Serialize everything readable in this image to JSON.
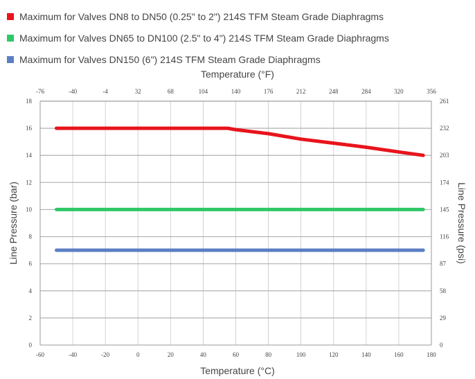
{
  "chart_data": {
    "type": "line",
    "legend": {
      "placement": "top-left",
      "entries": [
        {
          "label": "Maximum for Valves DN8 to DN50 (0.25\" to 2\") 214S TFM Steam Grade Diaphragms",
          "color": "#e8141c"
        },
        {
          "label": "Maximum for Valves DN65 to DN100 (2.5\" to 4\") 214S TFM Steam Grade Diaphragms",
          "color": "#2ec866"
        },
        {
          "label": "Maximum for Valves DN150 (6\") 214S TFM Steam Grade Diaphragms",
          "color": "#5b7fc4"
        }
      ]
    },
    "x_bottom": {
      "label": "Temperature (°C)",
      "range": [
        -60,
        180
      ],
      "ticks": [
        -60,
        -40,
        -20,
        0,
        20,
        40,
        60,
        80,
        100,
        120,
        140,
        160,
        180
      ]
    },
    "x_top": {
      "label": "Temperature (°F)",
      "ticks": [
        "-76",
        "-40",
        "-4",
        "32",
        "68",
        "104",
        "140",
        "176",
        "212",
        "248",
        "284",
        "320",
        "356"
      ]
    },
    "y_left": {
      "label": "Line Pressure (bar)",
      "range": [
        0,
        18
      ],
      "ticks": [
        0,
        2,
        4,
        6,
        8,
        10,
        12,
        14,
        16,
        18
      ]
    },
    "y_right": {
      "label": "Line Pressure (psi)",
      "ticks": [
        "0",
        "29",
        "58",
        "87",
        "116",
        "145",
        "174",
        "203",
        "232",
        "261"
      ]
    },
    "grid": {
      "horizontal": true,
      "vertical": true
    },
    "series": [
      {
        "name": "Maximum for Valves DN8 to DN50 (0.25\" to 2\") 214S TFM Steam Grade Diaphragms",
        "color": "#e8141c",
        "x": [
          -50,
          55,
          60,
          80,
          100,
          120,
          140,
          160,
          175
        ],
        "y": [
          16,
          16,
          15.9,
          15.6,
          15.2,
          14.9,
          14.6,
          14.25,
          14
        ]
      },
      {
        "name": "Maximum for Valves DN65 to DN100 (2.5\" to 4\") 214S TFM Steam Grade Diaphragms",
        "color": "#2ec866",
        "x": [
          -50,
          175
        ],
        "y": [
          10,
          10
        ]
      },
      {
        "name": "Maximum for Valves DN150 (6\") 214S TFM Steam Grade Diaphragms",
        "color": "#5b7fc4",
        "x": [
          -50,
          175
        ],
        "y": [
          7,
          7
        ]
      }
    ]
  }
}
